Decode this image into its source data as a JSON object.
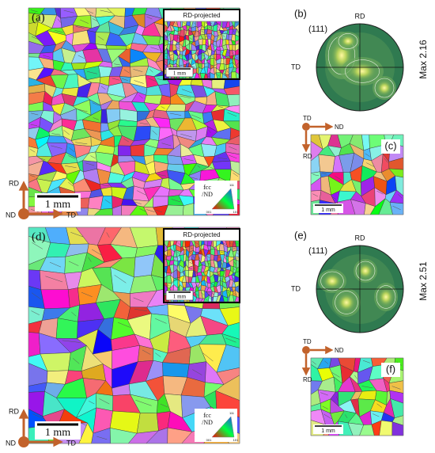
{
  "panels": [
    {
      "label": "(a)",
      "inset_label": "RD-projected",
      "inset_scale": "1 mm",
      "scale": "1 mm",
      "axes": {
        "rd": "RD",
        "nd": "ND",
        "td": "TD"
      },
      "legend": {
        "title": "fcc",
        "subtitle": "/ND",
        "corners": [
          "001",
          "101",
          "111"
        ]
      }
    },
    {
      "label": "(b)",
      "plane": "(111)",
      "rd": "RD",
      "td": "TD",
      "max": "Max 2.16"
    },
    {
      "label": "(c)",
      "axes": {
        "td": "TD",
        "nd": "ND",
        "rd": "RD"
      },
      "scale": "1 mm"
    },
    {
      "label": "(d)",
      "inset_label": "RD-projected",
      "inset_scale": "1 mm",
      "scale": "1 mm",
      "axes": {
        "rd": "RD",
        "nd": "ND",
        "td": "TD"
      },
      "legend": {
        "title": "fcc",
        "subtitle": "/ND",
        "corners": [
          "001",
          "101",
          "111"
        ]
      }
    },
    {
      "label": "(e)",
      "plane": "(111)",
      "rd": "RD",
      "td": "TD",
      "max": "Max 2.51"
    },
    {
      "label": "(f)",
      "axes": {
        "td": "TD",
        "nd": "ND",
        "rd": "RD"
      },
      "scale": "1 mm"
    }
  ]
}
